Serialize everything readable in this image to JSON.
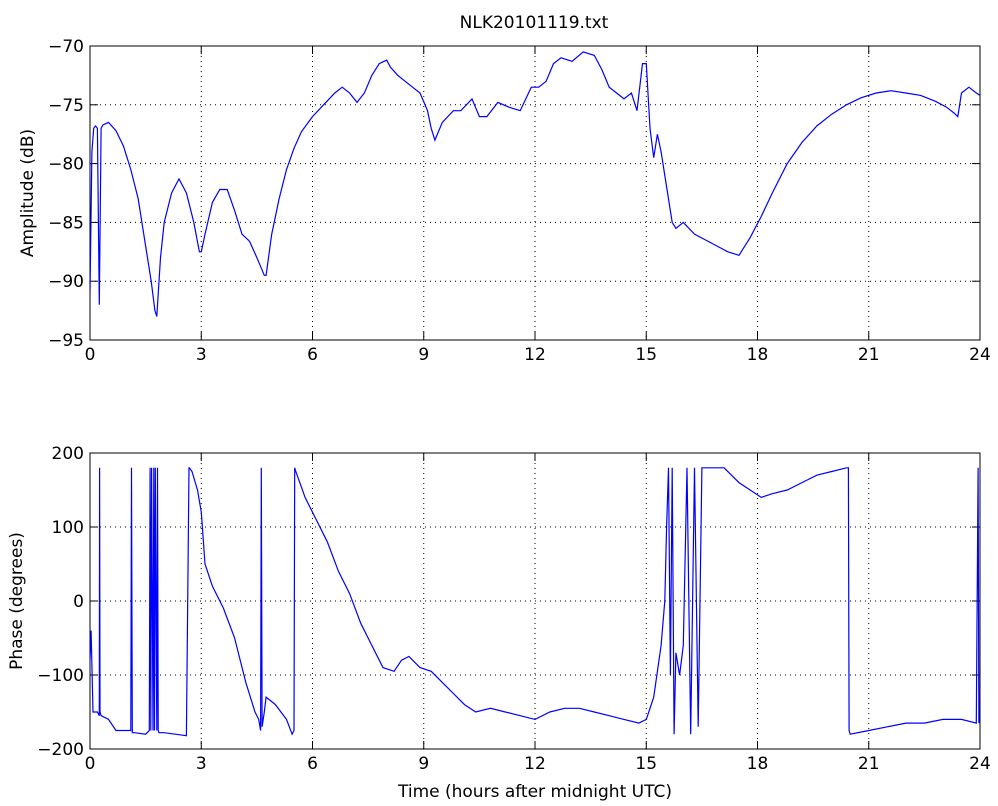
{
  "figure": {
    "title": "NLK20101119.txt",
    "background": "#ffffff",
    "series_color": "#0000ff"
  },
  "chart_data": [
    {
      "type": "line",
      "title": "NLK20101119.txt",
      "xlabel": "",
      "ylabel": "Amplitude (dB)",
      "xlim": [
        0,
        24
      ],
      "ylim": [
        -95,
        -70
      ],
      "xticks": [
        0,
        3,
        6,
        9,
        12,
        15,
        18,
        21,
        24
      ],
      "yticks": [
        -95,
        -90,
        -85,
        -80,
        -75,
        -70
      ],
      "xtick_labels": [
        "0",
        "3",
        "6",
        "9",
        "12",
        "15",
        "18",
        "21",
        "24"
      ],
      "ytick_labels": [
        "−95",
        "−90",
        "−85",
        "−80",
        "−75",
        "−70"
      ],
      "grid": true,
      "series": [
        {
          "x": [
            0,
            0.05,
            0.1,
            0.15,
            0.2,
            0.25,
            0.3,
            0.35,
            0.5,
            0.7,
            0.9,
            1.1,
            1.3,
            1.5,
            1.65,
            1.75,
            1.8,
            1.9,
            2.0,
            2.2,
            2.4,
            2.6,
            2.8,
            2.95,
            3.0,
            3.1,
            3.3,
            3.5,
            3.7,
            3.9,
            4.1,
            4.3,
            4.5,
            4.7,
            4.75,
            4.9,
            5.1,
            5.3,
            5.5,
            5.7,
            6.0,
            6.3,
            6.6,
            6.8,
            7.0,
            7.2,
            7.4,
            7.6,
            7.8,
            8.0,
            8.1,
            8.3,
            8.5,
            8.7,
            8.9,
            9.1,
            9.2,
            9.3,
            9.5,
            9.8,
            10.0,
            10.3,
            10.5,
            10.7,
            11.0,
            11.3,
            11.6,
            11.9,
            12.1,
            12.3,
            12.5,
            12.7,
            13.0,
            13.3,
            13.6,
            13.8,
            14.0,
            14.2,
            14.4,
            14.6,
            14.75,
            14.9,
            15.0,
            15.1,
            15.2,
            15.3,
            15.4,
            15.5,
            15.6,
            15.7,
            15.8,
            16.0,
            16.3,
            16.6,
            16.9,
            17.2,
            17.5,
            17.8,
            18.1,
            18.4,
            18.8,
            19.2,
            19.6,
            20.0,
            20.4,
            20.8,
            21.2,
            21.6,
            22.0,
            22.4,
            22.8,
            23.1,
            23.3,
            23.4,
            23.5,
            23.7,
            23.9,
            24.0
          ],
          "values": [
            -91,
            -79,
            -77,
            -76.8,
            -77,
            -92,
            -77,
            -76.7,
            -76.5,
            -77.2,
            -78.5,
            -80.5,
            -83,
            -87,
            -90,
            -92.5,
            -93,
            -88,
            -85,
            -82.5,
            -81.3,
            -82.5,
            -85,
            -87.5,
            -87.5,
            -86,
            -83.3,
            -82.2,
            -82.2,
            -84,
            -86,
            -86.6,
            -88,
            -89.5,
            -89.5,
            -86,
            -83,
            -80.5,
            -78.7,
            -77.3,
            -76,
            -75,
            -74,
            -73.5,
            -74,
            -74.8,
            -74,
            -72.5,
            -71.5,
            -71.2,
            -71.8,
            -72.5,
            -73,
            -73.5,
            -74,
            -75.5,
            -77,
            -78,
            -76.5,
            -75.5,
            -75.5,
            -74.5,
            -76,
            -76,
            -74.8,
            -75.2,
            -75.5,
            -73.5,
            -73.5,
            -73,
            -71.5,
            -71,
            -71.3,
            -70.5,
            -70.8,
            -72,
            -73.5,
            -74,
            -74.5,
            -74,
            -75.5,
            -71.5,
            -71.5,
            -77,
            -79.5,
            -77.5,
            -79,
            -81,
            -83,
            -85,
            -85.5,
            -85,
            -86,
            -86.5,
            -87,
            -87.5,
            -87.8,
            -86.3,
            -84.5,
            -82.5,
            -80,
            -78.2,
            -76.8,
            -75.8,
            -75,
            -74.4,
            -74,
            -73.8,
            -74,
            -74.2,
            -74.7,
            -75.2,
            -75.7,
            -76,
            -74,
            -73.5,
            -74,
            -74.2
          ]
        }
      ]
    },
    {
      "type": "line",
      "title": "",
      "xlabel": "Time (hours after midnight UTC)",
      "ylabel": "Phase (degrees)",
      "xlim": [
        0,
        24
      ],
      "ylim": [
        -200,
        200
      ],
      "xticks": [
        0,
        3,
        6,
        9,
        12,
        15,
        18,
        21,
        24
      ],
      "yticks": [
        -200,
        -100,
        0,
        100,
        200
      ],
      "xtick_labels": [
        "0",
        "3",
        "6",
        "9",
        "12",
        "15",
        "18",
        "21",
        "24"
      ],
      "ytick_labels": [
        "−200",
        "−100",
        "0",
        "100",
        "200"
      ],
      "grid": true,
      "series": [
        {
          "x": [
            0,
            0.03,
            0.08,
            0.1,
            0.2,
            0.25,
            0.26,
            0.27,
            0.3,
            0.5,
            0.7,
            1.0,
            1.1,
            1.12,
            1.14,
            1.2,
            1.5,
            1.6,
            1.62,
            1.64,
            1.66,
            1.7,
            1.72,
            1.74,
            1.76,
            1.8,
            1.82,
            1.84,
            1.86,
            2.0,
            2.3,
            2.6,
            2.67,
            2.68,
            2.75,
            2.9,
            3.0,
            3.1,
            3.3,
            3.6,
            3.9,
            4.2,
            4.45,
            4.55,
            4.6,
            4.62,
            4.64,
            4.7,
            4.75,
            5.0,
            5.3,
            5.45,
            5.5,
            5.52,
            5.55,
            5.8,
            6.1,
            6.4,
            6.7,
            7.0,
            7.3,
            7.6,
            7.9,
            8.2,
            8.4,
            8.6,
            8.9,
            9.2,
            9.5,
            9.8,
            10.1,
            10.4,
            10.8,
            11.2,
            11.6,
            12.0,
            12.4,
            12.8,
            13.2,
            13.6,
            14.0,
            14.4,
            14.8,
            15.0,
            15.2,
            15.4,
            15.5,
            15.55,
            15.6,
            15.65,
            15.7,
            15.75,
            15.8,
            15.9,
            16.0,
            16.1,
            16.2,
            16.3,
            16.4,
            16.5,
            16.7,
            16.9,
            17.1,
            17.3,
            17.5,
            17.8,
            18.1,
            18.4,
            18.8,
            19.2,
            19.6,
            20.0,
            20.4,
            20.45,
            20.47,
            20.5,
            21.0,
            21.5,
            22.0,
            22.5,
            23.0,
            23.5,
            23.9,
            23.95,
            23.97,
            24.0
          ],
          "values": [
            -80,
            -40,
            -150,
            -150,
            -150,
            -155,
            180,
            -150,
            -155,
            -160,
            -175,
            -175,
            -175,
            180,
            -178,
            -178,
            -180,
            -175,
            180,
            -175,
            180,
            -175,
            180,
            -175,
            180,
            -175,
            180,
            -175,
            -178,
            -178,
            -180,
            -182,
            180,
            180,
            175,
            150,
            120,
            50,
            20,
            -10,
            -50,
            -110,
            -150,
            -160,
            -175,
            180,
            -170,
            -150,
            -130,
            -140,
            -160,
            -180,
            -175,
            180,
            175,
            140,
            110,
            80,
            40,
            10,
            -30,
            -60,
            -90,
            -95,
            -80,
            -75,
            -90,
            -95,
            -110,
            -125,
            -140,
            -150,
            -145,
            -150,
            -155,
            -160,
            -150,
            -145,
            -145,
            -150,
            -155,
            -160,
            -165,
            -160,
            -130,
            -60,
            0,
            100,
            180,
            -100,
            180,
            -180,
            -70,
            -100,
            -60,
            180,
            -180,
            180,
            -170,
            180,
            180,
            180,
            180,
            170,
            160,
            150,
            140,
            145,
            150,
            160,
            170,
            175,
            180,
            180,
            -175,
            -180,
            -175,
            -170,
            -165,
            -165,
            -160,
            -160,
            -165,
            180,
            -165,
            -160
          ]
        }
      ]
    }
  ]
}
